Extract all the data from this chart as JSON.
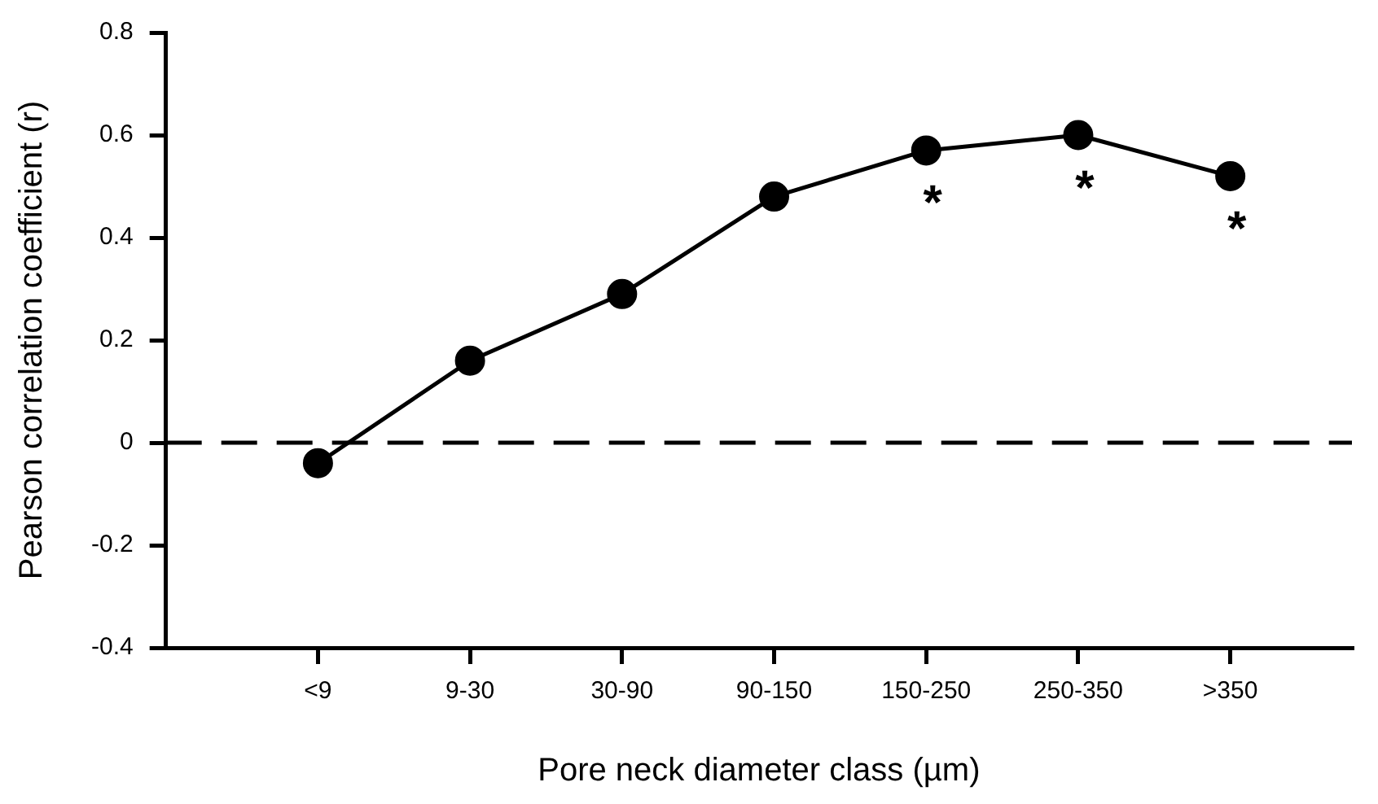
{
  "chart_data": {
    "type": "line",
    "xlabel": "Pore neck diameter class (µm)",
    "ylabel": "Pearson correlation coefficient (r)",
    "categories": [
      "<9",
      "9-30",
      "30-90",
      "90-150",
      "150-250",
      "250-350",
      ">350"
    ],
    "series": [
      {
        "color": "#000000",
        "values": [
          -0.04,
          0.16,
          0.29,
          0.48,
          0.57,
          0.6,
          0.52
        ]
      }
    ],
    "ylim": [
      -0.4,
      0.8
    ],
    "yticks": [
      -0.4,
      -0.2,
      0,
      0.2,
      0.4,
      0.6,
      0.8
    ],
    "ref_lines": [
      {
        "axis": "y",
        "value": 0,
        "color": "#000000",
        "line_style": "dashed"
      }
    ],
    "annotations": [
      {
        "text": "*",
        "x": "150-250",
        "y": 0.57
      },
      {
        "text": "*",
        "x": "250-350",
        "y": 0.6
      },
      {
        "text": "*",
        "x": ">350",
        "y": 0.52
      }
    ],
    "marker": "circle",
    "line_style": "solid",
    "grid": false,
    "legend": false
  }
}
